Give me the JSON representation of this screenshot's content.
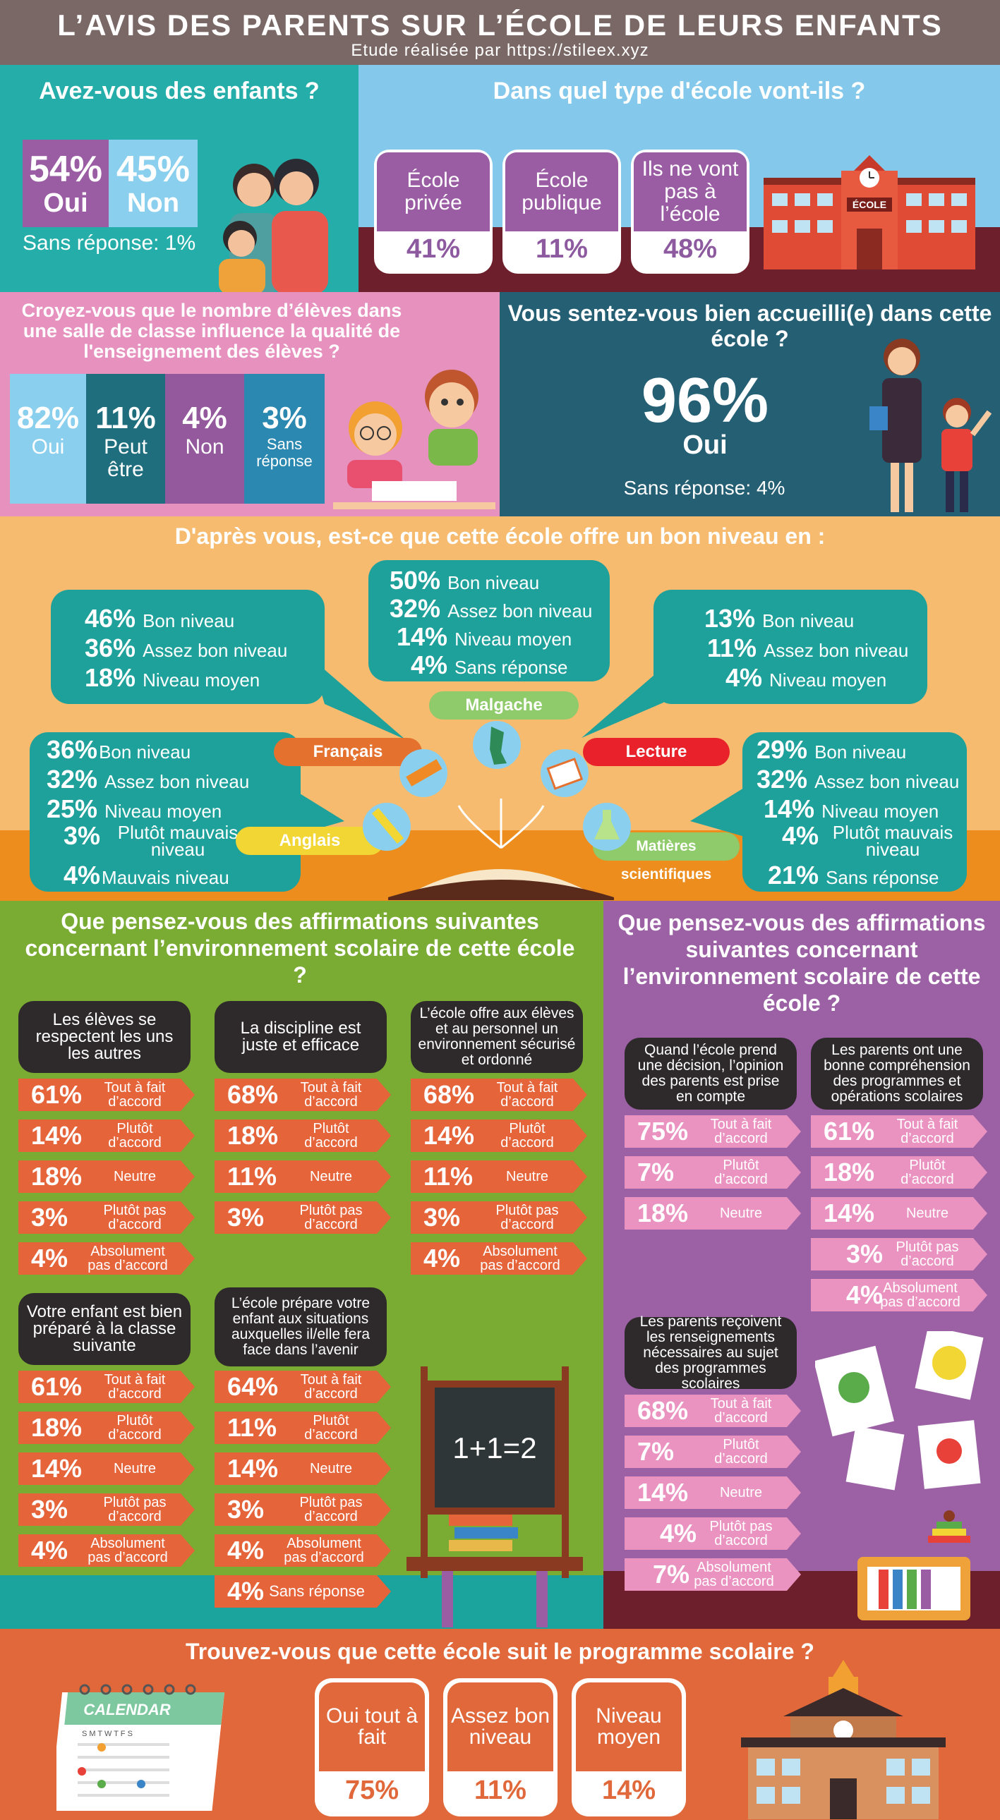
{
  "header": {
    "title": "L’AVIS DES PARENTS SUR L’ÉCOLE DE LEURS ENFANTS",
    "subtitle": "Etude réalisée par https://stileex.xyz"
  },
  "children": {
    "question": "Avez-vous des enfants ?",
    "yes_pct": "54%",
    "yes_label": "Oui",
    "no_pct": "45%",
    "no_label": "Non",
    "no_answer": "Sans réponse: 1%"
  },
  "school_type": {
    "question": "Dans quel type d'école vont-ils ?",
    "items": [
      {
        "label": "École privée",
        "pct": "41%"
      },
      {
        "label": "École publique",
        "pct": "11%"
      },
      {
        "label": "Ils ne vont pas à l’école",
        "pct": "48%"
      }
    ],
    "building_sign": "ÉCOLE"
  },
  "class_size": {
    "question": "Croyez-vous que le nombre d’élèves dans une salle de classe influence la qualité de l'enseignement des élèves ?",
    "items": [
      {
        "pct": "82%",
        "label": "Oui",
        "color": "#8ad0ee"
      },
      {
        "pct": "11%",
        "label": "Peut être",
        "color": "#1f6e7d"
      },
      {
        "pct": "4%",
        "label": "Non",
        "color": "#94599d"
      },
      {
        "pct": "3%",
        "label": "Sans réponse",
        "color": "#2b88b0"
      }
    ]
  },
  "welcome": {
    "question": "Vous sentez-vous bien accueilli(e) dans cette école ?",
    "pct": "96%",
    "label": "Oui",
    "no_answer": "Sans réponse: 4%"
  },
  "level": {
    "question": "D'après vous, est-ce que cette école offre un bon niveau en :",
    "francais": {
      "label": "Français",
      "lines": [
        {
          "pct": "46%",
          "label": "Bon niveau"
        },
        {
          "pct": "36%",
          "label": "Assez bon niveau"
        },
        {
          "pct": "18%",
          "label": "Niveau moyen"
        }
      ]
    },
    "malgache": {
      "label": "Malgache",
      "lines": [
        {
          "pct": "50%",
          "label": "Bon niveau"
        },
        {
          "pct": "32%",
          "label": "Assez bon niveau"
        },
        {
          "pct": "14%",
          "label": "Niveau moyen"
        },
        {
          "pct": "4%",
          "label": "Sans réponse"
        }
      ]
    },
    "lecture": {
      "label": "Lecture",
      "lines": [
        {
          "pct": "13%",
          "label": "Bon niveau"
        },
        {
          "pct": "11%",
          "label": "Assez bon niveau"
        },
        {
          "pct": "4%",
          "label": "Niveau moyen"
        }
      ]
    },
    "anglais": {
      "label": "Anglais",
      "lines": [
        {
          "pct": "36%",
          "label": "Bon niveau"
        },
        {
          "pct": "32%",
          "label": "Assez bon niveau"
        },
        {
          "pct": "25%",
          "label": "Niveau moyen"
        },
        {
          "pct": "3%",
          "label": "Plutôt mauvais niveau"
        },
        {
          "pct": "4%",
          "label": "Mauvais niveau"
        }
      ]
    },
    "sciences": {
      "label": "Matières scientifiques",
      "lines": [
        {
          "pct": "29%",
          "label": "Bon niveau"
        },
        {
          "pct": "32%",
          "label": "Assez bon niveau"
        },
        {
          "pct": "14%",
          "label": "Niveau moyen"
        },
        {
          "pct": "4%",
          "label": "Plutôt mauvais niveau"
        },
        {
          "pct": "21%",
          "label": "Sans réponse"
        }
      ]
    }
  },
  "env_green": {
    "question": "Que pensez-vous des affirmations suivantes concernant l’environnement scolaire de cette école ?",
    "blocks": [
      {
        "q": "Les élèves se respectent les uns les autres",
        "rows": [
          [
            "61%",
            "Tout à fait d’accord"
          ],
          [
            "14%",
            "Plutôt d’accord"
          ],
          [
            "18%",
            "Neutre"
          ],
          [
            "3%",
            "Plutôt pas d’accord"
          ],
          [
            "4%",
            "Absolument pas d’accord"
          ]
        ]
      },
      {
        "q": "La discipline est juste et efficace",
        "rows": [
          [
            "68%",
            "Tout à fait d’accord"
          ],
          [
            "18%",
            "Plutôt d’accord"
          ],
          [
            "11%",
            "Neutre"
          ],
          [
            "3%",
            "Plutôt pas d’accord"
          ]
        ]
      },
      {
        "q": "L’école offre aux élèves et au personnel un environnement sécurisé et ordonné",
        "rows": [
          [
            "68%",
            "Tout à fait d’accord"
          ],
          [
            "14%",
            "Plutôt d’accord"
          ],
          [
            "11%",
            "Neutre"
          ],
          [
            "3%",
            "Plutôt pas d’accord"
          ],
          [
            "4%",
            "Absolument pas d’accord"
          ]
        ]
      },
      {
        "q": "Votre enfant est bien préparé à la classe suivante",
        "rows": [
          [
            "61%",
            "Tout à fait d’accord"
          ],
          [
            "18%",
            "Plutôt d’accord"
          ],
          [
            "14%",
            "Neutre"
          ],
          [
            "3%",
            "Plutôt pas d’accord"
          ],
          [
            "4%",
            "Absolument pas d’accord"
          ]
        ]
      },
      {
        "q": "L’école prépare votre enfant aux situations auxquelles il/elle fera face dans l’avenir",
        "rows": [
          [
            "64%",
            "Tout à fait d’accord"
          ],
          [
            "11%",
            "Plutôt d’accord"
          ],
          [
            "14%",
            "Neutre"
          ],
          [
            "3%",
            "Plutôt pas d’accord"
          ],
          [
            "4%",
            "Absolument pas d’accord"
          ],
          [
            "4%",
            "Sans réponse"
          ]
        ]
      }
    ],
    "blackboard": "1+1=2"
  },
  "env_purple": {
    "question": "Que pensez-vous des affirmations suivantes concernant l’environnement scolaire de cette école ?",
    "blocks": [
      {
        "q": "Quand l’école prend une décision, l’opinion des parents est prise en compte",
        "rows": [
          [
            "75%",
            "Tout à fait d’accord"
          ],
          [
            "7%",
            "Plutôt d’accord"
          ],
          [
            "18%",
            "Neutre"
          ]
        ]
      },
      {
        "q": "Les parents ont une bonne compréhension des programmes et opérations scolaires",
        "rows": [
          [
            "61%",
            "Tout à fait d’accord"
          ],
          [
            "18%",
            "Plutôt d’accord"
          ],
          [
            "14%",
            "Neutre"
          ],
          [
            "3%",
            "Plutôt pas d’accord"
          ],
          [
            "4%",
            "Absolument pas d’accord"
          ]
        ]
      },
      {
        "q": "Les parents reçoivent les renseignements nécessaires au sujet des programmes scolaires",
        "rows": [
          [
            "68%",
            "Tout à fait d’accord"
          ],
          [
            "7%",
            "Plutôt d’accord"
          ],
          [
            "14%",
            "Neutre"
          ],
          [
            "4%",
            "Plutôt pas d’accord"
          ],
          [
            "7%",
            "Absolument pas d’accord"
          ]
        ]
      }
    ]
  },
  "programme": {
    "question": "Trouvez-vous que cette école suit le programme scolaire ?",
    "items": [
      {
        "label": "Oui tout à fait",
        "pct": "75%"
      },
      {
        "label": "Assez bon niveau",
        "pct": "11%"
      },
      {
        "label": "Niveau moyen",
        "pct": "14%"
      }
    ],
    "calendar_label": "CALENDAR",
    "calendar_days": "S M T W T F S"
  }
}
